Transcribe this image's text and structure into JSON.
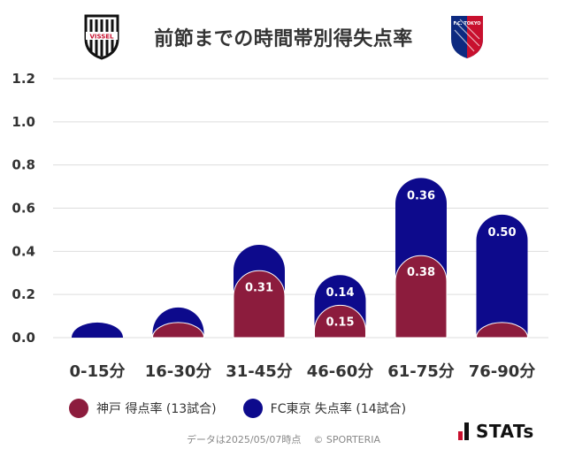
{
  "header": {
    "title": "前節までの時間帯別得失点率",
    "left_logo_text": "VISSEL",
    "right_logo_text": "F.C. TOKYO"
  },
  "colors": {
    "kobe": "#8c1c3d",
    "tokyo": "#0d0a8c",
    "grid": "#dddddd",
    "label": "#ffffff"
  },
  "chart_data": {
    "type": "bar",
    "title": "前節までの時間帯別得失点率",
    "categories": [
      "0-15分",
      "16-30分",
      "31-45分",
      "46-60分",
      "61-75分",
      "76-90分"
    ],
    "series": [
      {
        "name": "神戸 得点率 (13試合)",
        "values": [
          0.0,
          0.0,
          0.31,
          0.15,
          0.38,
          0.0
        ],
        "labels": [
          "",
          "",
          "0.31",
          "0.15",
          "0.38",
          ""
        ]
      },
      {
        "name": "FC東京 失点率 (14試合)",
        "values": [
          0.0,
          0.07,
          0.12,
          0.14,
          0.36,
          0.5
        ],
        "labels": [
          "",
          "",
          "",
          "0.14",
          "0.36",
          "0.50"
        ]
      }
    ],
    "stacked": true,
    "ylim": [
      0,
      1.2
    ],
    "yticks": [
      "0.0",
      "0.2",
      "0.4",
      "0.6",
      "0.8",
      "1.0",
      "1.2"
    ],
    "grid": true,
    "legend": "bottom"
  },
  "legend": {
    "kobe_label": "神戸 得点率 (13試合)",
    "tokyo_label": "FC東京 失点率 (14試合)"
  },
  "footer": {
    "date_text": "データは2025/05/07時点",
    "copyright": "© SPORTERIA"
  },
  "brand": {
    "name": "STATs"
  }
}
